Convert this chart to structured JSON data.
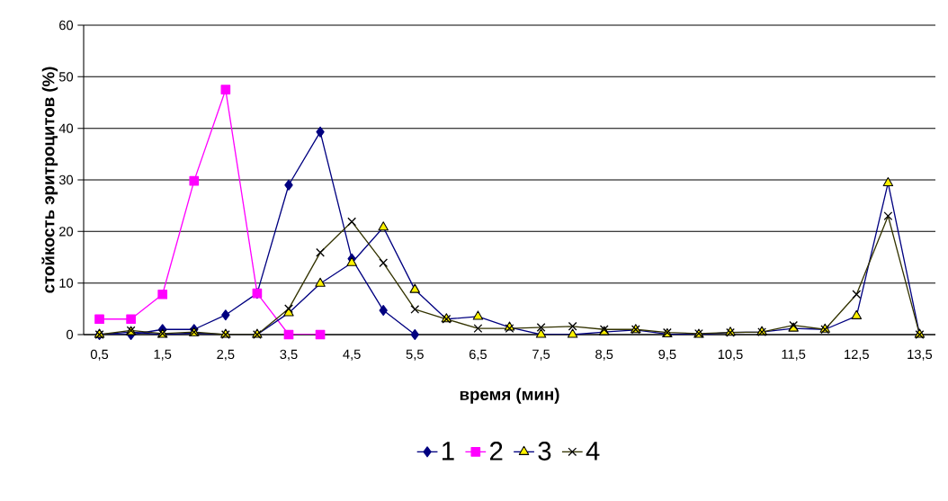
{
  "chart_data": {
    "type": "line",
    "xlabel": "время (мин)",
    "ylabel": "стойкость эритроцитов (%)",
    "categories": [
      "0,5",
      null,
      "1,5",
      null,
      "2,5",
      null,
      "3,5",
      null,
      "4,5",
      null,
      "5,5",
      null,
      "6,5",
      null,
      "7,5",
      null,
      "8,5",
      null,
      "9,5",
      null,
      "10,5",
      null,
      "11,5",
      null,
      "12,5",
      null,
      "13,5"
    ],
    "series": [
      {
        "name": "1",
        "color": "#000080",
        "marker": "diamond",
        "values": [
          0,
          0,
          1,
          1,
          3.8,
          8,
          29,
          39.3,
          14.7,
          4.7,
          0,
          null,
          null,
          null,
          null,
          null,
          null,
          null,
          null,
          null,
          null,
          null,
          null,
          null,
          null,
          null,
          null
        ]
      },
      {
        "name": "2",
        "color": "#ff00ff",
        "marker": "square",
        "values": [
          3,
          3,
          7.8,
          29.8,
          47.5,
          8,
          0,
          0,
          null,
          null,
          null,
          null,
          null,
          null,
          null,
          null,
          null,
          null,
          null,
          null,
          null,
          null,
          null,
          null,
          null,
          null,
          null
        ]
      },
      {
        "name": "3",
        "color": "#000080",
        "marker": "triangle",
        "values": [
          0,
          0.5,
          0,
          0.3,
          0,
          0,
          4.2,
          9.9,
          13.9,
          20.8,
          8.7,
          3,
          3.5,
          1.4,
          0,
          0,
          0.5,
          0.9,
          0.1,
          0,
          0.4,
          0.5,
          1.2,
          1,
          3.6,
          29.4,
          0
        ]
      },
      {
        "name": "4",
        "color": "#333300",
        "marker": "cross",
        "values": [
          0,
          0.8,
          0.2,
          0.5,
          0,
          0,
          5,
          15.9,
          21.9,
          13.9,
          4.9,
          3,
          1.2,
          1.2,
          1.4,
          1.6,
          1,
          1,
          0.4,
          0.2,
          0.4,
          0.5,
          1.8,
          1,
          7.8,
          23,
          0
        ]
      }
    ],
    "ylim": [
      0,
      60
    ],
    "yticks": [
      0,
      10,
      20,
      30,
      40,
      50,
      60
    ],
    "grid": "y",
    "legend": "bottom",
    "line_style": "solid"
  }
}
